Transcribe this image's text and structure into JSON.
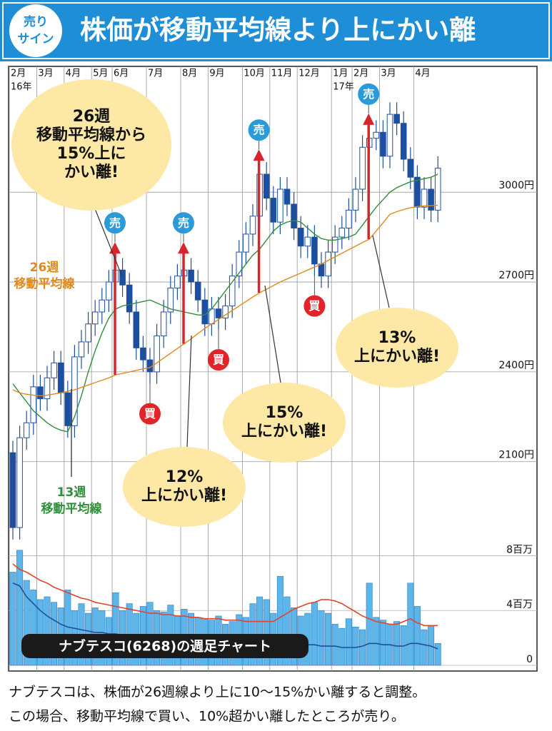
{
  "header": {
    "badge": [
      "売り",
      "サイン"
    ],
    "title": "株価が移動平均線より上にかい離"
  },
  "chart_data": [
    {
      "type": "candlestick",
      "categories": [
        "2月",
        null,
        null,
        null,
        "3月",
        null,
        null,
        null,
        "4月",
        null,
        null,
        null,
        "5月",
        null,
        null,
        "6月",
        null,
        null,
        null,
        null,
        "7月",
        null,
        null,
        null,
        null,
        "8月",
        null,
        null,
        null,
        "9月",
        null,
        null,
        null,
        null,
        "10月",
        null,
        null,
        null,
        "11月",
        null,
        null,
        null,
        "12月",
        null,
        null,
        null,
        null,
        "1月",
        null,
        null,
        "2月",
        null,
        null,
        null,
        "3月",
        null,
        null,
        null,
        null,
        "4月",
        null,
        null,
        null
      ],
      "year_labels": [
        "16年",
        null,
        null,
        null,
        null,
        null,
        null,
        null,
        null,
        null,
        null,
        null,
        null,
        null,
        null,
        null,
        null,
        null,
        null,
        null,
        null,
        null,
        null,
        null,
        null,
        null,
        null,
        null,
        null,
        null,
        null,
        null,
        null,
        null,
        null,
        null,
        null,
        null,
        null,
        null,
        null,
        null,
        null,
        null,
        null,
        null,
        null,
        "17年",
        null,
        null,
        null,
        null,
        null,
        null,
        null,
        null,
        null,
        null,
        null,
        null,
        null,
        null,
        null
      ],
      "open": [
        2130,
        1880,
        2180,
        2230,
        2350,
        2310,
        2380,
        2430,
        2330,
        2220,
        2450,
        2500,
        2560,
        2600,
        2640,
        2700,
        2740,
        2690,
        2600,
        2480,
        2440,
        2400,
        2520,
        2600,
        2680,
        2720,
        2740,
        2700,
        2640,
        2560,
        2610,
        2580,
        2620,
        2720,
        2800,
        2860,
        2920,
        3060,
        2980,
        2900,
        3010,
        2960,
        2880,
        2820,
        2850,
        2760,
        2720,
        2800,
        2850,
        2880,
        2940,
        3010,
        3150,
        3180,
        3200,
        3120,
        3260,
        3230,
        3110,
        3050,
        2950,
        3010,
        2940
      ],
      "high": [
        2170,
        2220,
        2270,
        2390,
        2390,
        2420,
        2470,
        2470,
        2370,
        2490,
        2540,
        2600,
        2640,
        2680,
        2740,
        2790,
        2780,
        2730,
        2640,
        2520,
        2480,
        2560,
        2640,
        2720,
        2760,
        2790,
        2780,
        2740,
        2680,
        2650,
        2650,
        2660,
        2760,
        2840,
        2900,
        2960,
        3100,
        3100,
        3020,
        3050,
        3050,
        3000,
        2920,
        2890,
        2890,
        2800,
        2840,
        2890,
        2920,
        2980,
        3050,
        3190,
        3220,
        3240,
        3240,
        3300,
        3300,
        3270,
        3150,
        3090,
        3050,
        3050,
        3120
      ],
      "low": [
        1840,
        1840,
        2140,
        2190,
        2270,
        2270,
        2340,
        2290,
        2180,
        2180,
        2410,
        2460,
        2520,
        2560,
        2600,
        2660,
        2650,
        2560,
        2440,
        2400,
        2360,
        2360,
        2480,
        2560,
        2640,
        2680,
        2660,
        2600,
        2520,
        2520,
        2540,
        2540,
        2580,
        2680,
        2760,
        2820,
        2880,
        2940,
        2860,
        2860,
        2920,
        2840,
        2780,
        2780,
        2720,
        2680,
        2680,
        2760,
        2810,
        2840,
        2900,
        2970,
        3110,
        3140,
        3080,
        3080,
        3190,
        3070,
        3010,
        2910,
        2910,
        2900,
        2900
      ],
      "close": [
        1880,
        2180,
        2230,
        2350,
        2310,
        2380,
        2430,
        2330,
        2220,
        2450,
        2500,
        2560,
        2600,
        2640,
        2700,
        2740,
        2690,
        2600,
        2480,
        2440,
        2400,
        2520,
        2600,
        2680,
        2720,
        2740,
        2700,
        2640,
        2560,
        2610,
        2580,
        2620,
        2720,
        2800,
        2860,
        2920,
        3060,
        2980,
        2900,
        3010,
        2960,
        2880,
        2820,
        2850,
        2760,
        2720,
        2800,
        2850,
        2880,
        2940,
        3010,
        3150,
        3180,
        3200,
        3120,
        3260,
        3230,
        3110,
        3050,
        2950,
        3010,
        2940,
        3080
      ],
      "up_color": "#ffffff",
      "down_color": "#1e4f9e",
      "series": [
        {
          "label": [
            "13週",
            "移動平均線"
          ],
          "color": "#2f8f3a",
          "values": [
            2360,
            2330,
            2300,
            2270,
            2250,
            2230,
            2215,
            2205,
            2200,
            2250,
            2320,
            2400,
            2470,
            2530,
            2580,
            2610,
            2620,
            2625,
            2630,
            2635,
            2640,
            2630,
            2620,
            2610,
            2605,
            2600,
            2595,
            2590,
            2590,
            2610,
            2640,
            2670,
            2700,
            2730,
            2760,
            2790,
            2810,
            2840,
            2870,
            2890,
            2900,
            2905,
            2900,
            2880,
            2860,
            2845,
            2840,
            2840,
            2845,
            2850,
            2860,
            2890,
            2920,
            2950,
            2975,
            3000,
            3015,
            3025,
            3035,
            3040,
            3045,
            3050,
            3060
          ]
        },
        {
          "label": [
            "26週",
            "移動平均線"
          ],
          "color": "#e0891c",
          "values": [
            2340,
            2330,
            2325,
            2322,
            2320,
            2322,
            2326,
            2330,
            2335,
            2340,
            2348,
            2356,
            2364,
            2372,
            2380,
            2390,
            2395,
            2400,
            2405,
            2410,
            2414,
            2430,
            2446,
            2462,
            2478,
            2494,
            2510,
            2528,
            2545,
            2560,
            2575,
            2590,
            2605,
            2620,
            2635,
            2650,
            2664,
            2676,
            2688,
            2700,
            2710,
            2720,
            2730,
            2740,
            2750,
            2760,
            2772,
            2784,
            2796,
            2808,
            2820,
            2832,
            2843,
            2870,
            2898,
            2926,
            2935,
            2942,
            2948,
            2952,
            2954,
            2955,
            2956
          ]
        }
      ],
      "ylim": [
        1830,
        3420
      ],
      "yticks": [
        {
          "value": 2100,
          "label": "2100円"
        },
        {
          "value": 2400,
          "label": "2400円"
        },
        {
          "value": 2700,
          "label": "2700円"
        },
        {
          "value": 3000,
          "label": "3000円"
        }
      ],
      "grid": true,
      "sell_signals": [
        "売",
        "売",
        "売",
        "売"
      ],
      "buy_signals": [
        "買",
        "買",
        "買"
      ],
      "callouts": [
        [
          "26週",
          "移動平均線から",
          "15%上に",
          "かい離!"
        ],
        [
          "12%",
          "上にかい離!"
        ],
        [
          "15%",
          "上にかい離!"
        ],
        [
          "13%",
          "上にかい離!"
        ]
      ]
    },
    {
      "type": "bar",
      "title": "ナブテスコ(6268)の週足チャート",
      "color": "#5db5ea",
      "values": [
        6.8,
        8.4,
        6.2,
        5.5,
        4.8,
        5.0,
        4.6,
        4.2,
        5.5,
        4.0,
        4.5,
        3.8,
        4.2,
        4.0,
        3.5,
        5.3,
        4.0,
        4.5,
        3.8,
        4.3,
        4.6,
        4.0,
        3.9,
        4.4,
        3.6,
        4.1,
        3.8,
        3.5,
        3.4,
        3.3,
        3.6,
        3.0,
        3.2,
        3.7,
        3.5,
        4.5,
        5.0,
        4.8,
        3.8,
        6.5,
        5.0,
        4.2,
        3.6,
        3.8,
        4.6,
        4.0,
        3.8,
        3.0,
        2.7,
        3.4,
        2.8,
        2.6,
        6.0,
        3.5,
        3.3,
        3.0,
        3.2,
        2.9,
        6.0,
        4.3,
        2.6,
        2.9,
        1.6
      ],
      "series": [
        {
          "color": "#e0452c",
          "values": [
            7.4,
            7.0,
            6.8,
            6.5,
            6.2,
            6.0,
            5.7,
            5.5,
            5.3,
            5.1,
            4.9,
            4.8,
            4.6,
            4.5,
            4.4,
            4.3,
            4.2,
            4.1,
            4.0,
            3.9,
            3.8,
            3.8,
            3.7,
            3.7,
            3.6,
            3.6,
            3.5,
            3.5,
            3.4,
            3.4,
            3.4,
            3.3,
            3.3,
            3.3,
            3.2,
            3.2,
            3.2,
            3.2,
            3.2,
            3.5,
            3.8,
            4.1,
            4.3,
            4.5,
            4.6,
            4.8,
            4.8,
            4.7,
            4.5,
            4.2,
            3.9,
            3.6,
            3.4,
            3.2,
            3.1,
            3.0,
            3.0,
            3.2,
            3.4,
            3.1,
            2.9,
            2.9,
            2.9
          ]
        },
        {
          "color": "#1d4fa0",
          "values": [
            6.0,
            5.8,
            5.0,
            4.5,
            4.0,
            3.6,
            3.3,
            3.0,
            2.8,
            2.7,
            2.6,
            2.5,
            2.4,
            2.4,
            2.3,
            2.3,
            2.2,
            2.2,
            2.1,
            2.1,
            2.0,
            2.0,
            1.9,
            1.9,
            1.8,
            1.8,
            1.8,
            1.7,
            1.7,
            1.7,
            1.6,
            1.6,
            1.6,
            1.6,
            1.5,
            1.5,
            1.5,
            1.5,
            1.5,
            1.7,
            1.8,
            1.7,
            1.6,
            1.5,
            1.5,
            1.4,
            1.4,
            1.4,
            1.3,
            1.3,
            1.3,
            1.4,
            1.6,
            1.6,
            1.5,
            1.5,
            1.4,
            1.4,
            1.6,
            1.6,
            1.5,
            1.4,
            1.2
          ]
        }
      ],
      "ylim": [
        0,
        8.7
      ],
      "yticks": [
        0,
        {
          "value": 4,
          "label": "4百万"
        },
        {
          "value": 8,
          "label": "8百万"
        }
      ]
    }
  ],
  "footer": [
    "ナブテスコは、株価が26週線より上に10〜15%かい離すると調整。",
    "この場合、移動平均線で買い、10%超かい離したところが売り。"
  ]
}
